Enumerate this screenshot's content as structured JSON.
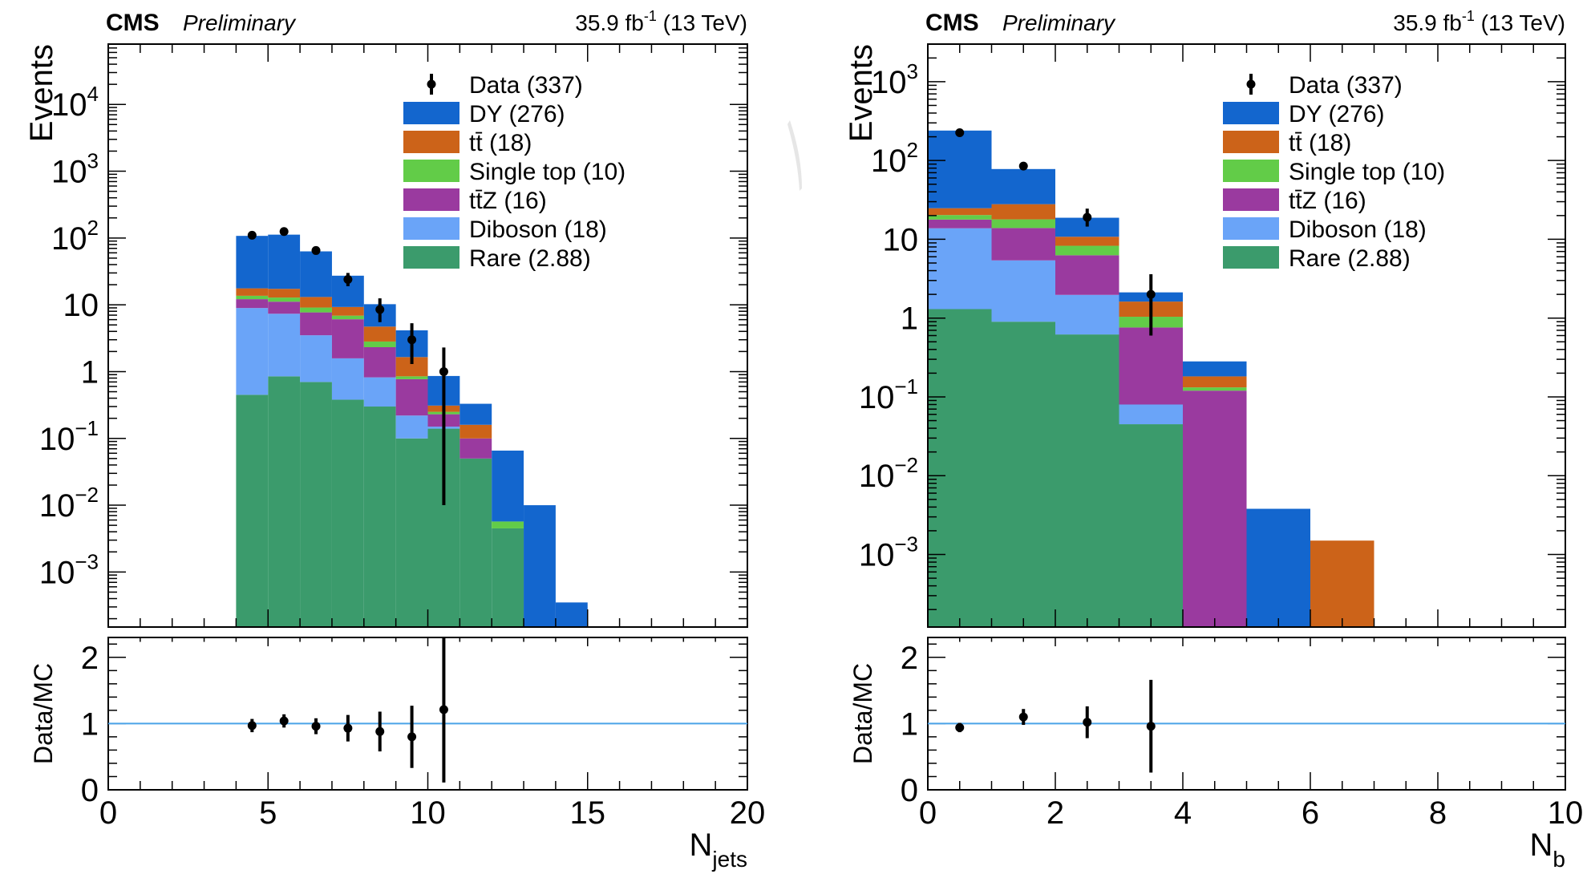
{
  "header": {
    "experiment": "CMS",
    "status": "Preliminary",
    "lumi_value": "35.9 fb",
    "lumi_exp": "-1",
    "energy": "(13 TeV)"
  },
  "colors": {
    "Rare": "#3b9b6c",
    "Diboson": "#6aa4f8",
    "ttZ": "#9a3a9f",
    "Single top": "#62cc48",
    "tt": "#cc6319",
    "DY": "#1366ce",
    "data": "#000000",
    "ratio_line": "#4aa3e8"
  },
  "legend": [
    {
      "key": "Data",
      "label": "Data (337)",
      "kind": "marker"
    },
    {
      "key": "DY",
      "label": "DY (276)",
      "kind": "box"
    },
    {
      "key": "tt",
      "label": "tt̄ (18)",
      "kind": "box"
    },
    {
      "key": "Single top",
      "label": "Single top (10)",
      "kind": "box"
    },
    {
      "key": "ttZ",
      "label": "tt̄Z (16)",
      "kind": "box"
    },
    {
      "key": "Diboson",
      "label": "Diboson (18)",
      "kind": "box"
    },
    {
      "key": "Rare",
      "label": "Rare (2.88)",
      "kind": "box"
    }
  ],
  "chart_data": [
    {
      "type": "bar",
      "stacked": true,
      "yscale": "log",
      "xlabel_main": "N",
      "xlabel_sub": "jets",
      "ylabel": "Events",
      "ratio_ylabel": "Data/MC",
      "xlim": [
        0,
        20
      ],
      "ylim": [
        0.00015,
        80000
      ],
      "xticks": [
        "0",
        "5",
        "10",
        "15",
        "20"
      ],
      "ytick_values": [
        0.001,
        0.01,
        0.1,
        1,
        10,
        100,
        1000,
        10000
      ],
      "ytick_labels": [
        {
          "base": "10",
          "exp": "−3"
        },
        {
          "base": "10",
          "exp": "−2"
        },
        {
          "base": "10",
          "exp": "−1"
        },
        {
          "base": "1",
          "exp": ""
        },
        {
          "base": "10",
          "exp": ""
        },
        {
          "base": "10",
          "exp": "2"
        },
        {
          "base": "10",
          "exp": "3"
        },
        {
          "base": "10",
          "exp": "4"
        }
      ],
      "ratio_ylim": [
        0,
        2.3
      ],
      "ratio_yticks": [
        "0",
        "1",
        "2"
      ],
      "bins": [
        4,
        5,
        6,
        7,
        8,
        9,
        10,
        11,
        12,
        13,
        14
      ],
      "stack_order": [
        "Rare",
        "Diboson",
        "ttZ",
        "Single top",
        "tt",
        "DY"
      ],
      "series": [
        {
          "name": "Rare",
          "values": [
            0.45,
            0.85,
            0.7,
            0.38,
            0.3,
            0.1,
            0.14,
            0.05,
            0.0045,
            0,
            0
          ]
        },
        {
          "name": "Diboson",
          "values": [
            8.5,
            6.5,
            2.8,
            1.2,
            0.52,
            0.12,
            0.01,
            0,
            0,
            0,
            0
          ]
        },
        {
          "name": "ttZ",
          "values": [
            3.2,
            3.8,
            4.2,
            4.5,
            1.5,
            0.55,
            0.08,
            0.05,
            0,
            0,
            0
          ]
        },
        {
          "name": "Single top",
          "values": [
            1.5,
            1.7,
            1.4,
            0.8,
            0.5,
            0.08,
            0.02,
            0,
            0.0012,
            0,
            0
          ]
        },
        {
          "name": "tt",
          "values": [
            4,
            4.5,
            4,
            2.4,
            1.9,
            0.8,
            0.06,
            0.06,
            0,
            0,
            0
          ]
        },
        {
          "name": "DY",
          "values": [
            90,
            95,
            50,
            18,
            5.5,
            2.5,
            0.55,
            0.17,
            0.06,
            0.01,
            0.00035
          ]
        }
      ],
      "data": {
        "x": [
          4.5,
          5.5,
          6.5,
          7.5,
          8.5,
          9.5,
          10.5
        ],
        "y": [
          110,
          125,
          65,
          24,
          8.5,
          3,
          1
        ],
        "err_low": [
          10,
          11,
          8,
          5,
          3,
          1.7,
          0.99
        ],
        "err_high": [
          11,
          12,
          9,
          6,
          4,
          2.3,
          1.3
        ]
      },
      "ratio": {
        "x": [
          4.5,
          5.5,
          6.5,
          7.5,
          8.5,
          9.5,
          10.5
        ],
        "y": [
          0.97,
          1.04,
          0.96,
          0.93,
          0.88,
          0.8,
          1.21
        ],
        "err": [
          0.1,
          0.1,
          0.12,
          0.2,
          0.3,
          0.47,
          1.1
        ]
      }
    },
    {
      "type": "bar",
      "stacked": true,
      "yscale": "log",
      "xlabel_main": "N",
      "xlabel_sub": "b",
      "ylabel": "Events",
      "ratio_ylabel": "Data/MC",
      "xlim": [
        0,
        10
      ],
      "ylim": [
        0.00012,
        3000
      ],
      "xticks": [
        "0",
        "2",
        "4",
        "6",
        "8",
        "10"
      ],
      "ytick_values": [
        0.001,
        0.01,
        0.1,
        1,
        10,
        100,
        1000
      ],
      "ytick_labels": [
        {
          "base": "10",
          "exp": "−3"
        },
        {
          "base": "10",
          "exp": "−2"
        },
        {
          "base": "10",
          "exp": "−1"
        },
        {
          "base": "1",
          "exp": ""
        },
        {
          "base": "10",
          "exp": ""
        },
        {
          "base": "10",
          "exp": "2"
        },
        {
          "base": "10",
          "exp": "3"
        }
      ],
      "ratio_ylim": [
        0,
        2.3
      ],
      "ratio_yticks": [
        "0",
        "1",
        "2"
      ],
      "bins": [
        0,
        1,
        2,
        3,
        4,
        5,
        6
      ],
      "stack_order": [
        "Rare",
        "Diboson",
        "ttZ",
        "Single top",
        "tt",
        "DY"
      ],
      "series": [
        {
          "name": "Rare",
          "values": [
            1.3,
            0.9,
            0.62,
            0.045,
            0,
            0,
            0
          ]
        },
        {
          "name": "Diboson",
          "values": [
            12.5,
            4.5,
            1.35,
            0.035,
            0,
            0,
            0
          ]
        },
        {
          "name": "ttZ",
          "values": [
            4,
            8.5,
            4.3,
            0.68,
            0.12,
            0,
            0
          ]
        },
        {
          "name": "Single top",
          "values": [
            2.5,
            4,
            2,
            0.28,
            0.012,
            0,
            0
          ]
        },
        {
          "name": "tt",
          "values": [
            4.5,
            10,
            2.5,
            0.58,
            0.05,
            0,
            0.0015
          ]
        },
        {
          "name": "DY",
          "values": [
            215,
            50,
            8,
            0.5,
            0.1,
            0.0038,
            0
          ]
        }
      ],
      "data": {
        "x": [
          0.5,
          1.5,
          2.5,
          3.5
        ],
        "y": [
          225,
          85,
          19,
          2
        ],
        "err_low": [
          15,
          9,
          4.5,
          1.4
        ],
        "err_high": [
          16,
          10,
          5.5,
          1.6
        ]
      },
      "ratio": {
        "x": [
          0.5,
          1.5,
          2.5,
          3.5
        ],
        "y": [
          0.94,
          1.1,
          1.02,
          0.96
        ],
        "err": [
          0.07,
          0.12,
          0.24,
          0.7
        ]
      }
    }
  ]
}
